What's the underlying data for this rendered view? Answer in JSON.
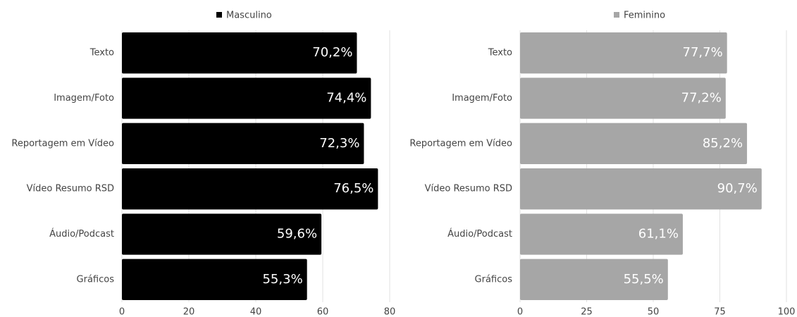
{
  "chart_data": [
    {
      "type": "bar",
      "orientation": "horizontal",
      "categories": [
        "Texto",
        "Imagem/Foto",
        "Reportagem em Vídeo",
        "Vídeo Resumo RSD",
        "Áudio/Podcast",
        "Gráficos"
      ],
      "series": [
        {
          "name": "Masculino",
          "color": "#000000",
          "values": [
            70.2,
            74.4,
            72.3,
            76.5,
            59.6,
            55.3
          ],
          "value_labels": [
            "70,2%",
            "74,4%",
            "72,3%",
            "76,5%",
            "59,6%",
            "55,3%"
          ]
        }
      ],
      "xlim": [
        0,
        80
      ],
      "xticks": [
        0,
        20,
        40,
        60,
        80
      ],
      "grid": true,
      "legend": "top"
    },
    {
      "type": "bar",
      "orientation": "horizontal",
      "categories": [
        "Texto",
        "Imagem/Foto",
        "Reportagem em Vídeo",
        "Vídeo Resumo RSD",
        "Áudio/Podcast",
        "Gráficos"
      ],
      "series": [
        {
          "name": "Feminino",
          "color": "#a6a6a6",
          "values": [
            77.7,
            77.2,
            85.2,
            90.7,
            61.1,
            55.5
          ],
          "value_labels": [
            "77,7%",
            "77,2%",
            "85,2%",
            "90,7%",
            "61,1%",
            "55,5%"
          ]
        }
      ],
      "xlim": [
        0,
        100
      ],
      "xticks": [
        0,
        25,
        50,
        75,
        100
      ],
      "grid": true,
      "legend": "top"
    }
  ]
}
